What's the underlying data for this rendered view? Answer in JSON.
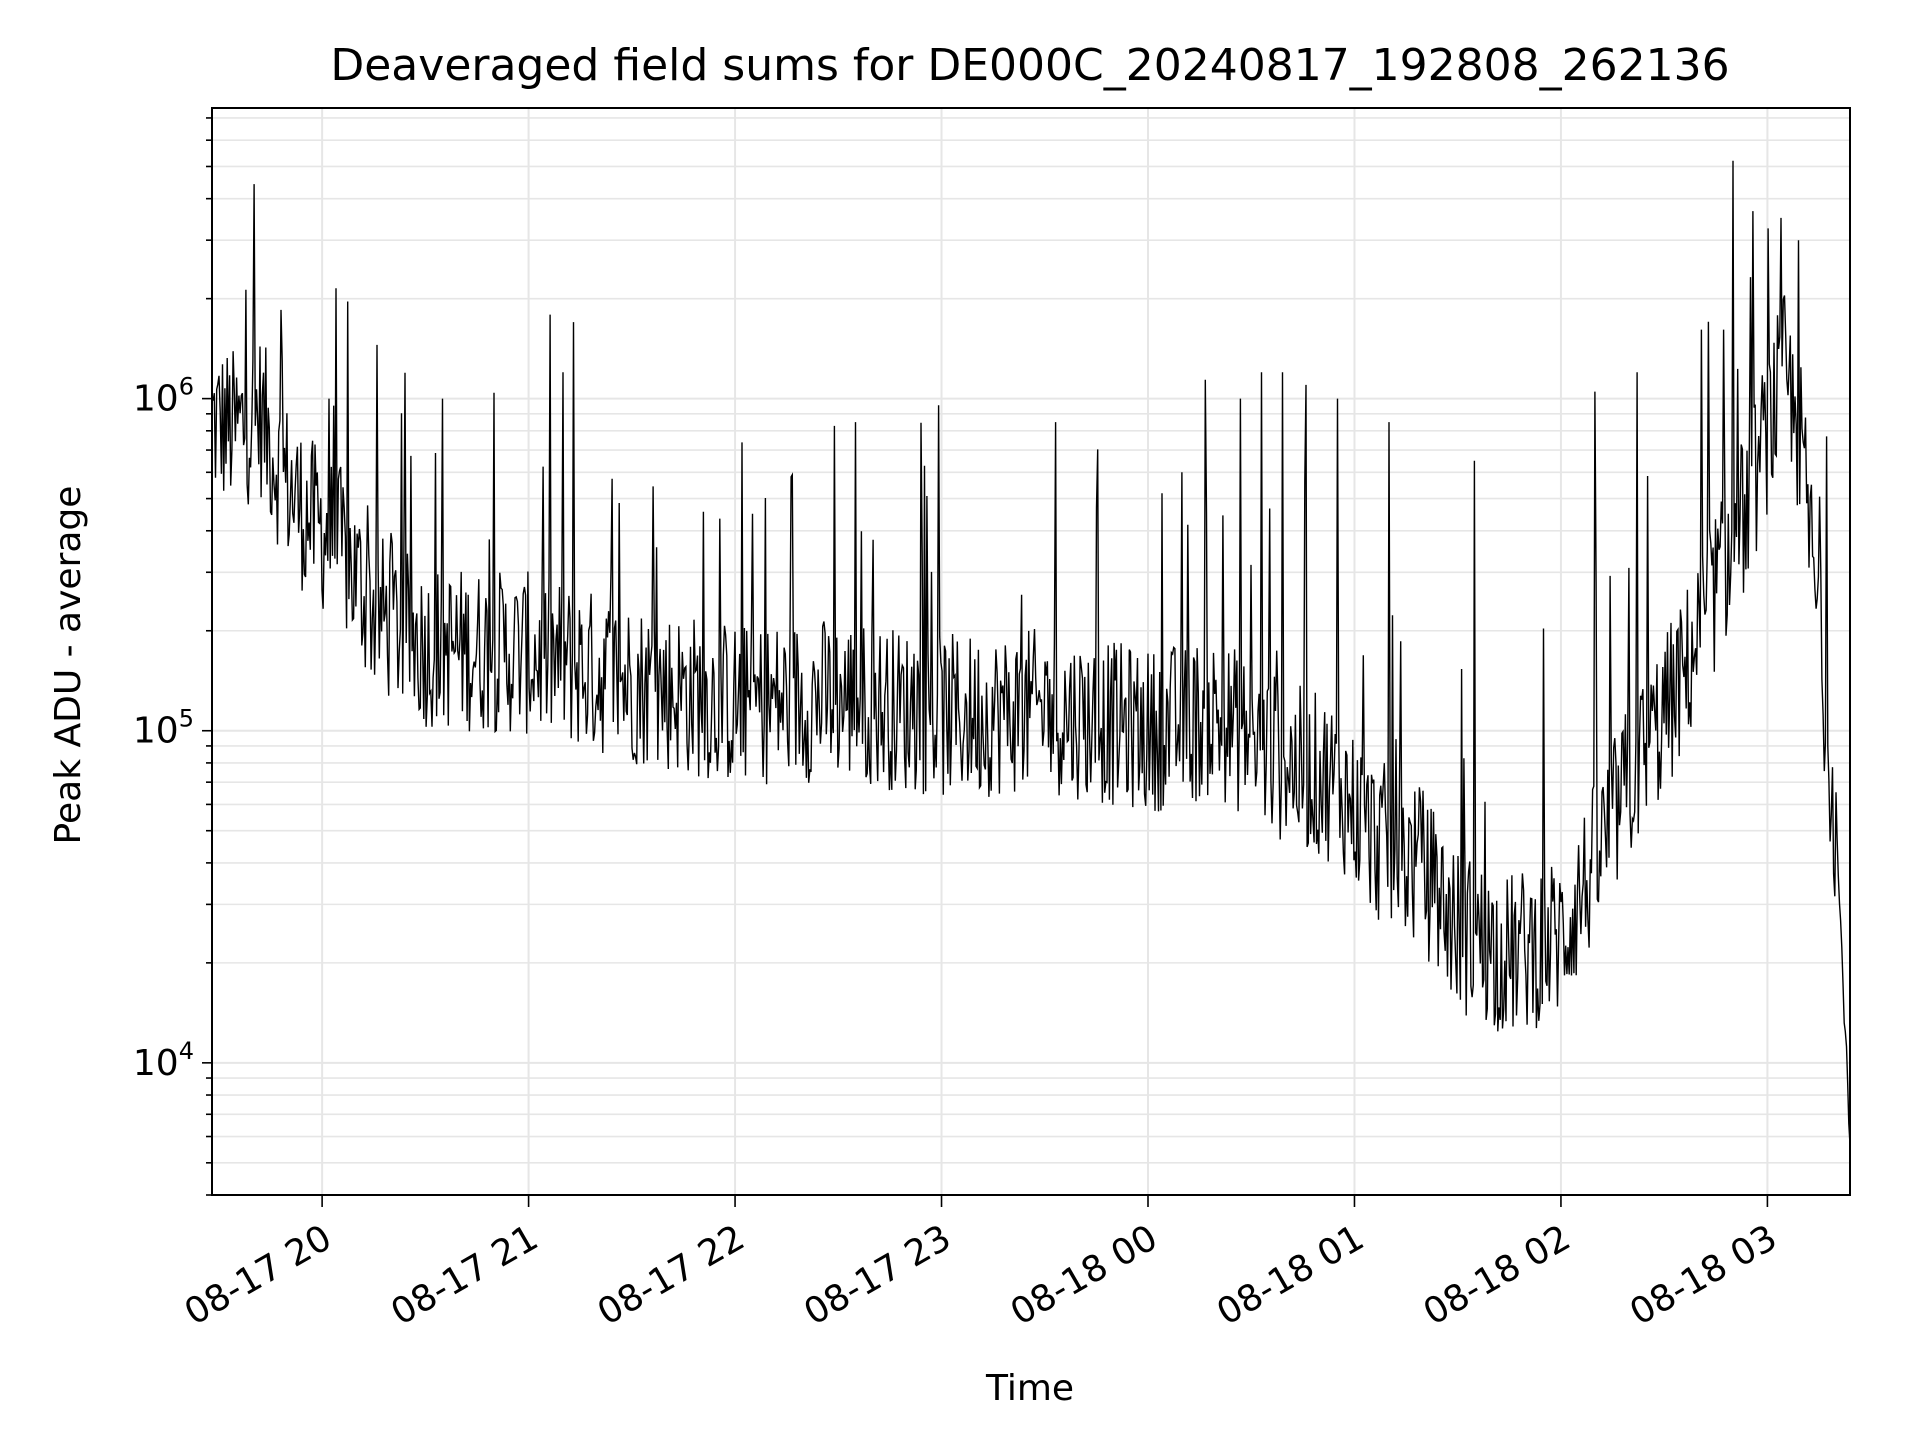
{
  "chart_data": {
    "type": "line",
    "title": "Deaveraged field sums for DE000C_20240817_192808_262136",
    "xlabel": "Time",
    "ylabel": "Peak ADU - average",
    "yscale": "log",
    "ylim": [
      4000,
      7500000
    ],
    "xlim": [
      "2024-08-17 19:28",
      "2024-08-18 03:24"
    ],
    "grid": true,
    "line_color": "#000000",
    "grid_color": "#e6e6e6",
    "x_ticks": [
      {
        "value": "2024-08-17 20:00",
        "label": "08-17 20"
      },
      {
        "value": "2024-08-17 21:00",
        "label": "08-17 21"
      },
      {
        "value": "2024-08-17 22:00",
        "label": "08-17 22"
      },
      {
        "value": "2024-08-17 23:00",
        "label": "08-17 23"
      },
      {
        "value": "2024-08-18 00:00",
        "label": "08-18 00"
      },
      {
        "value": "2024-08-18 01:00",
        "label": "08-18 01"
      },
      {
        "value": "2024-08-18 02:00",
        "label": "08-18 02"
      },
      {
        "value": "2024-08-18 03:00",
        "label": "08-18 03"
      }
    ],
    "y_ticks": [
      {
        "value": 10000,
        "base": "10",
        "exp": "4"
      },
      {
        "value": 100000,
        "base": "10",
        "exp": "5"
      },
      {
        "value": 1000000,
        "base": "10",
        "exp": "6"
      }
    ],
    "series": [
      {
        "baseline": [
          [
            "2024-08-17 19:28",
            850000
          ],
          [
            "2024-08-17 19:35",
            800000
          ],
          [
            "2024-08-17 19:42",
            900000
          ],
          [
            "2024-08-17 19:48",
            600000
          ],
          [
            "2024-08-17 19:55",
            450000
          ],
          [
            "2024-08-17 20:05",
            360000
          ],
          [
            "2024-08-17 20:15",
            230000
          ],
          [
            "2024-08-17 20:30",
            180000
          ],
          [
            "2024-08-17 21:00",
            170000
          ],
          [
            "2024-08-17 21:30",
            140000
          ],
          [
            "2024-08-17 22:00",
            120000
          ],
          [
            "2024-08-17 22:30",
            125000
          ],
          [
            "2024-08-17 23:00",
            110000
          ],
          [
            "2024-08-17 23:30",
            115000
          ],
          [
            "2024-08-18 00:00",
            100000
          ],
          [
            "2024-08-18 00:20",
            110000
          ],
          [
            "2024-08-18 00:40",
            80000
          ],
          [
            "2024-08-18 00:55",
            70000
          ],
          [
            "2024-08-18 01:05",
            48000
          ],
          [
            "2024-08-18 01:20",
            38000
          ],
          [
            "2024-08-18 01:30",
            25000
          ],
          [
            "2024-08-18 01:45",
            21000
          ],
          [
            "2024-08-18 02:00",
            24000
          ],
          [
            "2024-08-18 02:10",
            40000
          ],
          [
            "2024-08-18 02:20",
            70000
          ],
          [
            "2024-08-18 02:35",
            140000
          ],
          [
            "2024-08-18 02:45",
            270000
          ],
          [
            "2024-08-18 02:55",
            500000
          ],
          [
            "2024-08-18 03:00",
            800000
          ],
          [
            "2024-08-18 03:05",
            1200000
          ],
          [
            "2024-08-18 03:10",
            700000
          ],
          [
            "2024-08-18 03:15",
            200000
          ],
          [
            "2024-08-18 03:20",
            50000
          ],
          [
            "2024-08-18 03:24",
            6000
          ]
        ],
        "spikes": [
          [
            "2024-08-17 19:48",
            1850000
          ],
          [
            "2024-08-17 20:02",
            1000000
          ],
          [
            "2024-08-17 20:35",
            1000000
          ],
          [
            "2024-08-17 21:10",
            1200000
          ],
          [
            "2024-08-17 21:13",
            1700000
          ],
          [
            "2024-08-17 22:05",
            450000
          ],
          [
            "2024-08-17 22:35",
            850000
          ],
          [
            "2024-08-17 23:33",
            850000
          ],
          [
            "2024-08-18 00:10",
            600000
          ],
          [
            "2024-08-18 00:27",
            1000000
          ],
          [
            "2024-08-18 00:33",
            1200000
          ],
          [
            "2024-08-18 00:39",
            1200000
          ],
          [
            "2024-08-18 00:46",
            1100000
          ],
          [
            "2024-08-18 00:55",
            1000000
          ],
          [
            "2024-08-18 01:10",
            850000
          ],
          [
            "2024-08-18 01:35",
            650000
          ],
          [
            "2024-08-18 02:10",
            1050000
          ],
          [
            "2024-08-18 02:22",
            1200000
          ],
          [
            "2024-08-18 02:50",
            5200000
          ],
          [
            "2024-08-18 03:04",
            3500000
          ],
          [
            "2024-08-18 03:09",
            3000000
          ]
        ]
      }
    ]
  }
}
